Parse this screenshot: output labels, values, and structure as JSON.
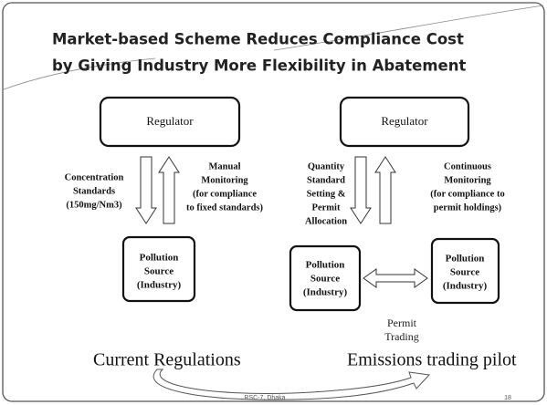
{
  "title": [
    "Market-based Scheme Reduces Compliance Cost",
    "by Giving Industry More Flexibility in Abatement"
  ],
  "left": {
    "regulator": "Regulator",
    "down_label": [
      "Concentration",
      "Standards",
      "(150mg/Nm3)"
    ],
    "up_label": [
      "Manual",
      "Monitoring",
      "(for compliance",
      "to fixed standards)"
    ],
    "source": [
      "Pollution",
      "Source",
      "(Industry)"
    ],
    "caption": "Current Regulations"
  },
  "right": {
    "regulator": "Regulator",
    "down_label": [
      "Quantity",
      "Standard",
      "Setting &",
      "Permit",
      "Allocation"
    ],
    "up_label": [
      "Continuous",
      "Monitoring",
      "(for compliance to",
      "permit holdings)"
    ],
    "source_a": [
      "Pollution",
      "Source",
      "(Industry)"
    ],
    "source_b": [
      "Pollution",
      "Source",
      "(Industry)"
    ],
    "trading": [
      "Permit",
      "Trading"
    ],
    "caption": "Emissions trading pilot"
  },
  "footer": "RSC-7, Dhaka",
  "page": "18"
}
